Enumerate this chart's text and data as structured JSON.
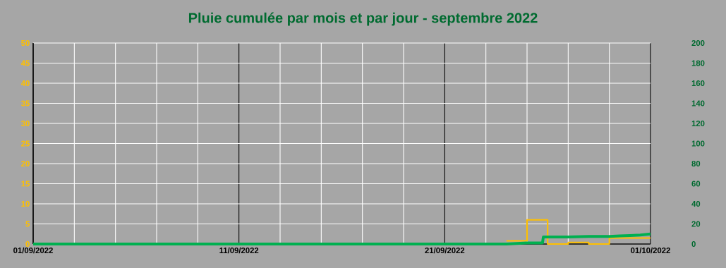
{
  "chart_data": {
    "type": "step",
    "title": "Pluie cumulée par mois et par jour - septembre 2022",
    "xlim": [
      "2022-09-01",
      "2022-10-01"
    ],
    "xticks": [
      {
        "value": "2022-09-01",
        "label": "01/09/2022"
      },
      {
        "value": "2022-09-03",
        "label": null
      },
      {
        "value": "2022-09-05",
        "label": null
      },
      {
        "value": "2022-09-07",
        "label": null
      },
      {
        "value": "2022-09-09",
        "label": null
      },
      {
        "value": "2022-09-11",
        "label": "11/09/2022"
      },
      {
        "value": "2022-09-13",
        "label": null
      },
      {
        "value": "2022-09-15",
        "label": null
      },
      {
        "value": "2022-09-17",
        "label": null
      },
      {
        "value": "2022-09-19",
        "label": null
      },
      {
        "value": "2022-09-21",
        "label": "21/09/2022"
      },
      {
        "value": "2022-09-23",
        "label": null
      },
      {
        "value": "2022-09-25",
        "label": null
      },
      {
        "value": "2022-09-27",
        "label": null
      },
      {
        "value": "2022-09-29",
        "label": null
      },
      {
        "value": "2022-10-01",
        "label": "01/10/2022"
      }
    ],
    "ylim": [
      0,
      50
    ],
    "yticks": [
      0,
      5,
      10,
      15,
      20,
      25,
      30,
      35,
      40,
      45,
      50
    ],
    "y2lim": [
      0,
      200
    ],
    "y2ticks": [
      0,
      20,
      40,
      60,
      80,
      100,
      120,
      140,
      160,
      180,
      200
    ],
    "grid": true,
    "series": [
      {
        "color": "#ffc000",
        "x": [
          "2022-09-24",
          "2022-09-25",
          "2022-09-26",
          "2022-09-27",
          "2022-09-28",
          "2022-09-29",
          "2022-09-30",
          "2022-10-01"
        ],
        "values": [
          0.8,
          6,
          0,
          0.4,
          0,
          1.5,
          1.5,
          1.5
        ]
      },
      {
        "type": "line",
        "color": "#00b050",
        "axis": "y2",
        "x": [
          "2022-09-01",
          "2022-09-24T00:00",
          "2022-09-25T00:00",
          "2022-09-25T18:00",
          "2022-09-25T19:00",
          "2022-09-27T00:00",
          "2022-09-28T00:00",
          "2022-09-29T00:00",
          "2022-09-29T12:00",
          "2022-09-30T00:00",
          "2022-09-30T12:00",
          "2022-10-01T00:00"
        ],
        "values": [
          0,
          0,
          1,
          1,
          7,
          7,
          7.5,
          7.5,
          8,
          8.5,
          9,
          10
        ]
      }
    ]
  }
}
